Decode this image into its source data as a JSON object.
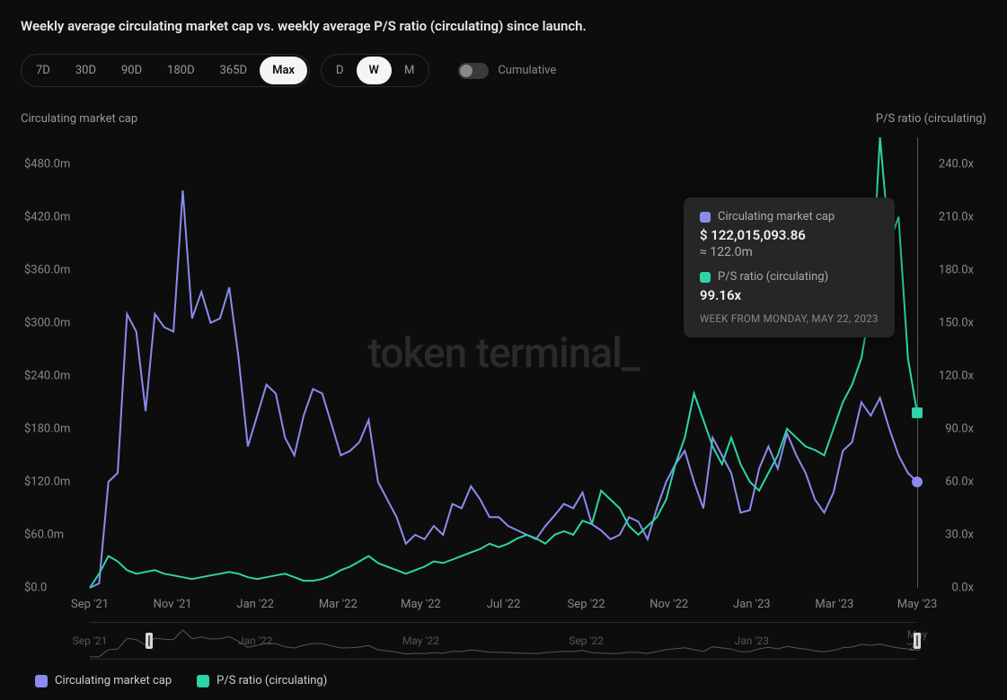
{
  "title": "Weekly average circulating market cap vs. weekly average P/S ratio (circulating) since launch.",
  "watermark": "token terminal_",
  "colors": {
    "background": "#0d0d0d",
    "series_mcap": "#8b8bef",
    "series_ps": "#2dd4a7",
    "grid": "#1a1a1a",
    "text_muted": "#888888",
    "text_primary": "#e8e8e8",
    "tooltip_bg": "#262626"
  },
  "time_ranges": {
    "options": [
      "7D",
      "30D",
      "90D",
      "180D",
      "365D",
      "Max"
    ],
    "active": "Max"
  },
  "intervals": {
    "options": [
      "D",
      "W",
      "M"
    ],
    "active": "W"
  },
  "toggle": {
    "label": "Cumulative",
    "on": false
  },
  "chart": {
    "type": "line",
    "y_left_label": "Circulating market cap",
    "y_right_label": "P/S ratio (circulating)",
    "y_left_ticks": [
      "$0.0",
      "$60.0m",
      "$120.0m",
      "$180.0m",
      "$240.0m",
      "$300.0m",
      "$360.0m",
      "$420.0m",
      "$480.0m"
    ],
    "y_left_max": 510,
    "y_right_ticks": [
      "0.0x",
      "30.0x",
      "60.0x",
      "90.0x",
      "120.0x",
      "150.0x",
      "180.0x",
      "210.0x",
      "240.0x"
    ],
    "y_right_max": 255,
    "x_ticks": [
      "Sep '21",
      "Nov '21",
      "Jan '22",
      "Mar '22",
      "May '22",
      "Jul '22",
      "Sep '22",
      "Nov '22",
      "Jan '23",
      "Mar '23",
      "May '23"
    ],
    "x_min": 0,
    "x_max": 92,
    "line_width": 2,
    "series_mcap": {
      "label": "Circulating market cap",
      "values": [
        0,
        5,
        120,
        130,
        310,
        290,
        200,
        310,
        295,
        290,
        450,
        305,
        335,
        300,
        305,
        340,
        260,
        160,
        195,
        230,
        220,
        170,
        150,
        195,
        225,
        220,
        185,
        150,
        155,
        165,
        190,
        120,
        100,
        80,
        50,
        60,
        55,
        70,
        60,
        95,
        90,
        115,
        100,
        80,
        80,
        70,
        65,
        60,
        55,
        70,
        82,
        95,
        90,
        108,
        72,
        65,
        55,
        60,
        80,
        75,
        55,
        90,
        120,
        140,
        155,
        120,
        90,
        170,
        150,
        130,
        85,
        88,
        135,
        160,
        135,
        175,
        150,
        130,
        100,
        85,
        108,
        155,
        165,
        210,
        195,
        215,
        180,
        150,
        130,
        120
      ]
    },
    "series_ps": {
      "label": "P/S ratio (circulating)",
      "values": [
        0,
        8,
        18,
        15,
        10,
        8,
        9,
        10,
        8,
        7,
        6,
        5,
        6,
        7,
        8,
        9,
        8,
        6,
        5,
        6,
        7,
        8,
        6,
        4,
        4,
        5,
        7,
        10,
        12,
        15,
        18,
        14,
        12,
        10,
        8,
        10,
        12,
        15,
        14,
        16,
        18,
        20,
        22,
        25,
        23,
        25,
        28,
        30,
        28,
        25,
        30,
        32,
        30,
        38,
        36,
        55,
        50,
        45,
        35,
        30,
        35,
        40,
        50,
        70,
        85,
        110,
        95,
        80,
        70,
        85,
        70,
        60,
        55,
        65,
        75,
        90,
        85,
        80,
        78,
        75,
        90,
        105,
        115,
        130,
        160,
        255,
        195,
        210,
        130,
        99
      ]
    }
  },
  "tooltip": {
    "x_index": 89,
    "mcap_label": "Circulating market cap",
    "mcap_value": "$ 122,015,093.86",
    "mcap_approx": "≈ 122.0m",
    "ps_label": "P/S ratio (circulating)",
    "ps_value": "99.16x",
    "date_label": "WEEK FROM MONDAY, MAY 22, 2023"
  },
  "brush": {
    "ticks": [
      "Sep '21",
      "Jan '22",
      "May '22",
      "Sep '22",
      "Jan '23",
      "May '23"
    ]
  },
  "legend": [
    {
      "label": "Circulating market cap",
      "color": "#8b8bef"
    },
    {
      "label": "P/S ratio (circulating)",
      "color": "#2dd4a7"
    }
  ]
}
